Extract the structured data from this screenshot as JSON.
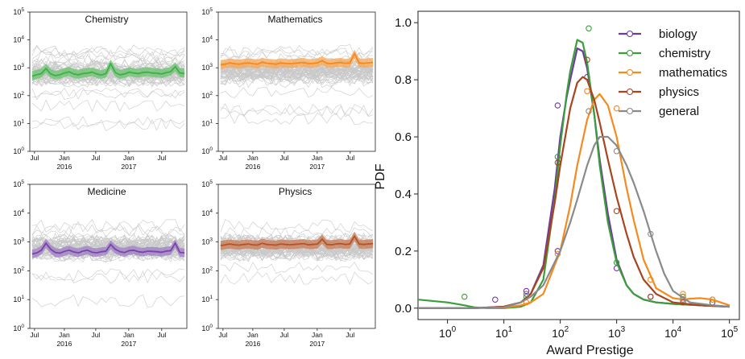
{
  "chart_data": [
    {
      "type": "line",
      "title": "Chemistry",
      "yscale": "log",
      "ylim": [
        1,
        100000
      ],
      "x_ticks": [
        {
          "main": "Jul",
          "sub": ""
        },
        {
          "main": "Jan",
          "sub": "2016"
        },
        {
          "main": "Jul",
          "sub": ""
        },
        {
          "main": "Jan",
          "sub": "2017"
        },
        {
          "main": "Jul",
          "sub": ""
        }
      ],
      "color": "#3fae49",
      "band_color": "#69c46f",
      "median": [
        500,
        560,
        620,
        950,
        600,
        520,
        560,
        650,
        720,
        600,
        560,
        620,
        650,
        700,
        600,
        550,
        620,
        1400,
        680,
        560,
        600,
        700,
        650,
        620,
        680,
        700,
        650,
        640,
        600,
        660,
        720,
        1100,
        650,
        620
      ],
      "band_low": [
        350,
        400,
        440,
        650,
        430,
        380,
        400,
        460,
        500,
        430,
        400,
        440,
        460,
        500,
        430,
        400,
        440,
        900,
        480,
        400,
        430,
        500,
        460,
        440,
        480,
        500,
        460,
        450,
        430,
        470,
        510,
        750,
        460,
        440
      ],
      "band_high": [
        760,
        840,
        930,
        1400,
        900,
        780,
        840,
        980,
        1080,
        900,
        840,
        930,
        980,
        1050,
        900,
        830,
        930,
        2000,
        1020,
        840,
        900,
        1050,
        980,
        930,
        1020,
        1050,
        980,
        960,
        900,
        990,
        1080,
        1600,
        980,
        930
      ]
    },
    {
      "type": "line",
      "title": "Mathematics",
      "yscale": "log",
      "ylim": [
        1,
        100000
      ],
      "x_ticks": [
        {
          "main": "Jul",
          "sub": ""
        },
        {
          "main": "Jan",
          "sub": "2016"
        },
        {
          "main": "Jul",
          "sub": ""
        },
        {
          "main": "Jan",
          "sub": "2017"
        },
        {
          "main": "Jul",
          "sub": ""
        }
      ],
      "color": "#f5891f",
      "band_color": "#f7a654",
      "median": [
        1300,
        1350,
        1500,
        1400,
        1350,
        1450,
        1500,
        1400,
        1350,
        1600,
        1450,
        1400,
        1350,
        1500,
        1450,
        1400,
        1450,
        1500,
        1550,
        1400,
        1450,
        1500,
        1800,
        1450,
        1400,
        1500,
        1550,
        1450,
        1500,
        3200,
        1500,
        1450,
        1500,
        1550
      ],
      "band_low": [
        900,
        950,
        1050,
        980,
        950,
        1000,
        1050,
        980,
        950,
        1100,
        1000,
        980,
        950,
        1050,
        1000,
        980,
        1000,
        1050,
        1080,
        980,
        1000,
        1050,
        1250,
        1000,
        980,
        1050,
        1080,
        1000,
        1050,
        2100,
        1050,
        1000,
        1050,
        1080
      ],
      "band_high": [
        1900,
        2000,
        2200,
        2050,
        2000,
        2100,
        2200,
        2050,
        2000,
        2300,
        2100,
        2050,
        2000,
        2200,
        2100,
        2050,
        2100,
        2200,
        2250,
        2050,
        2100,
        2200,
        2600,
        2100,
        2050,
        2200,
        2250,
        2100,
        2200,
        4500,
        2200,
        2100,
        2200,
        2250
      ]
    },
    {
      "type": "line",
      "title": "Medicine",
      "yscale": "log",
      "ylim": [
        1,
        100000
      ],
      "x_ticks": [
        {
          "main": "Jul",
          "sub": ""
        },
        {
          "main": "Jan",
          "sub": "2016"
        },
        {
          "main": "Jul",
          "sub": ""
        },
        {
          "main": "Jan",
          "sub": "2017"
        },
        {
          "main": "Jul",
          "sub": ""
        }
      ],
      "color": "#7b43a8",
      "band_color": "#9c7dc6",
      "median": [
        380,
        420,
        520,
        900,
        560,
        430,
        410,
        470,
        520,
        450,
        420,
        480,
        520,
        440,
        420,
        460,
        480,
        820,
        560,
        460,
        430,
        500,
        520,
        460,
        440,
        480,
        470,
        460,
        440,
        480,
        500,
        900,
        430,
        420
      ],
      "band_low": [
        270,
        300,
        370,
        620,
        390,
        300,
        290,
        330,
        370,
        320,
        300,
        340,
        370,
        310,
        300,
        330,
        340,
        560,
        390,
        330,
        300,
        350,
        370,
        330,
        310,
        340,
        330,
        330,
        310,
        340,
        350,
        620,
        300,
        300
      ],
      "band_high": [
        540,
        600,
        740,
        1300,
        800,
        620,
        580,
        670,
        740,
        640,
        600,
        680,
        740,
        630,
        600,
        660,
        680,
        1150,
        800,
        660,
        620,
        710,
        740,
        660,
        630,
        680,
        670,
        660,
        630,
        680,
        710,
        1250,
        610,
        600
      ]
    },
    {
      "type": "line",
      "title": "Physics",
      "yscale": "log",
      "ylim": [
        1,
        100000
      ],
      "x_ticks": [
        {
          "main": "Jul",
          "sub": ""
        },
        {
          "main": "Jan",
          "sub": "2016"
        },
        {
          "main": "Jul",
          "sub": ""
        },
        {
          "main": "Jan",
          "sub": "2017"
        },
        {
          "main": "Jul",
          "sub": ""
        }
      ],
      "color": "#b25329",
      "band_color": "#c97a52",
      "median": [
        750,
        800,
        850,
        800,
        780,
        820,
        850,
        800,
        780,
        900,
        820,
        800,
        780,
        850,
        820,
        800,
        820,
        850,
        880,
        800,
        820,
        850,
        1250,
        820,
        800,
        850,
        880,
        820,
        850,
        1600,
        850,
        820,
        850,
        880
      ],
      "band_low": [
        520,
        560,
        590,
        560,
        540,
        570,
        590,
        560,
        540,
        630,
        570,
        560,
        540,
        590,
        570,
        560,
        570,
        590,
        610,
        560,
        570,
        590,
        870,
        570,
        560,
        590,
        610,
        570,
        590,
        1100,
        590,
        570,
        590,
        610
      ],
      "band_high": [
        1080,
        1150,
        1220,
        1150,
        1120,
        1180,
        1220,
        1150,
        1120,
        1300,
        1180,
        1150,
        1120,
        1220,
        1180,
        1150,
        1180,
        1220,
        1260,
        1150,
        1180,
        1220,
        1800,
        1180,
        1150,
        1220,
        1260,
        1180,
        1220,
        2300,
        1220,
        1180,
        1220,
        1260
      ]
    },
    {
      "type": "line",
      "xlabel": "Award Prestige",
      "ylabel": "PDF",
      "xscale": "log",
      "xlim": [
        0.3,
        150000
      ],
      "ylim": [
        -0.04,
        1.04
      ],
      "x_ticks": [
        1,
        10,
        100,
        1000,
        10000,
        100000
      ],
      "y_ticks": [
        "0.0",
        "0.2",
        "0.4",
        "0.6",
        "0.8",
        "1.0"
      ],
      "legend_placement": "top-right",
      "series": [
        {
          "name": "biology",
          "color": "#6f3a9f",
          "x": [
            0.3,
            1,
            3,
            10,
            20,
            30,
            50,
            80,
            100,
            130,
            150,
            200,
            250,
            300,
            400,
            500,
            700,
            1000,
            1500,
            2000,
            3000,
            5000,
            10000,
            30000,
            100000
          ],
          "y": [
            0.0,
            0.0,
            0.0,
            0.005,
            0.02,
            0.05,
            0.15,
            0.42,
            0.6,
            0.74,
            0.8,
            0.91,
            0.9,
            0.84,
            0.68,
            0.52,
            0.33,
            0.17,
            0.08,
            0.05,
            0.03,
            0.02,
            0.015,
            0.01,
            0.005
          ],
          "markers": [
            [
              7,
              0.03
            ],
            [
              25,
              0.06
            ],
            [
              90,
              0.71
            ],
            [
              90,
              0.2
            ],
            [
              300,
              0.81
            ],
            [
              1000,
              0.14
            ],
            [
              4000,
              0.04
            ],
            [
              15000,
              0.03
            ],
            [
              50000,
              0.02
            ]
          ]
        },
        {
          "name": "chemistry",
          "color": "#3a9e3a",
          "x": [
            0.3,
            1,
            2,
            3,
            5,
            10,
            20,
            30,
            50,
            80,
            100,
            130,
            150,
            200,
            250,
            300,
            400,
            500,
            700,
            1000,
            1500,
            2000,
            3000,
            5000,
            10000,
            30000,
            100000
          ],
          "y": [
            0.03,
            0.02,
            0.01,
            0.003,
            0.0,
            0.0,
            0.005,
            0.02,
            0.1,
            0.38,
            0.57,
            0.75,
            0.83,
            0.94,
            0.93,
            0.86,
            0.68,
            0.5,
            0.3,
            0.16,
            0.08,
            0.05,
            0.03,
            0.02,
            0.015,
            0.01,
            0.005
          ],
          "markers": [
            [
              2,
              0.04
            ],
            [
              25,
              0.04
            ],
            [
              90,
              0.53
            ],
            [
              320,
              0.98
            ],
            [
              1000,
              0.16
            ],
            [
              15000,
              0.04
            ],
            [
              50000,
              0.03
            ]
          ]
        },
        {
          "name": "mathematics",
          "color": "#f58a1f",
          "x": [
            0.3,
            1,
            3,
            10,
            20,
            30,
            50,
            100,
            150,
            200,
            300,
            400,
            500,
            700,
            1000,
            1500,
            2000,
            3000,
            5000,
            10000,
            15000,
            20000,
            30000,
            50000,
            70000,
            100000
          ],
          "y": [
            0.0,
            0.0,
            0.0,
            0.002,
            0.01,
            0.02,
            0.05,
            0.2,
            0.36,
            0.5,
            0.66,
            0.73,
            0.75,
            0.71,
            0.6,
            0.42,
            0.31,
            0.17,
            0.07,
            0.035,
            0.03,
            0.033,
            0.035,
            0.03,
            0.02,
            0.01
          ],
          "markers": [
            [
              25,
              0.02
            ],
            [
              90,
              0.19
            ],
            [
              300,
              0.76
            ],
            [
              1000,
              0.7
            ],
            [
              4000,
              0.1
            ],
            [
              15000,
              0.05
            ],
            [
              50000,
              0.03
            ]
          ]
        },
        {
          "name": "physics",
          "color": "#a8441e",
          "x": [
            0.3,
            1,
            3,
            10,
            20,
            30,
            50,
            80,
            100,
            150,
            200,
            250,
            300,
            400,
            500,
            700,
            1000,
            1500,
            2000,
            3000,
            5000,
            10000,
            30000,
            100000
          ],
          "y": [
            0.0,
            0.0,
            0.0,
            0.005,
            0.02,
            0.05,
            0.14,
            0.37,
            0.5,
            0.7,
            0.79,
            0.81,
            0.8,
            0.73,
            0.65,
            0.52,
            0.39,
            0.26,
            0.18,
            0.1,
            0.05,
            0.02,
            0.01,
            0.005
          ],
          "markers": [
            [
              25,
              0.05
            ],
            [
              90,
              0.51
            ],
            [
              300,
              0.87
            ],
            [
              1000,
              0.34
            ],
            [
              4000,
              0.04
            ],
            [
              15000,
              0.02
            ]
          ]
        },
        {
          "name": "general",
          "color": "#8a8a8a",
          "x": [
            0.3,
            1,
            3,
            10,
            20,
            30,
            50,
            100,
            150,
            200,
            300,
            400,
            500,
            700,
            1000,
            1500,
            2000,
            3000,
            5000,
            7000,
            10000,
            20000,
            50000,
            100000
          ],
          "y": [
            0.0,
            0.0,
            0.0,
            0.003,
            0.02,
            0.04,
            0.08,
            0.2,
            0.3,
            0.38,
            0.5,
            0.57,
            0.6,
            0.6,
            0.57,
            0.5,
            0.44,
            0.34,
            0.2,
            0.12,
            0.06,
            0.02,
            0.01,
            0.005
          ],
          "markers": [
            [
              25,
              0.05
            ],
            [
              320,
              0.69
            ],
            [
              1000,
              0.55
            ],
            [
              4000,
              0.26
            ],
            [
              15000,
              0.03
            ]
          ]
        }
      ]
    }
  ]
}
